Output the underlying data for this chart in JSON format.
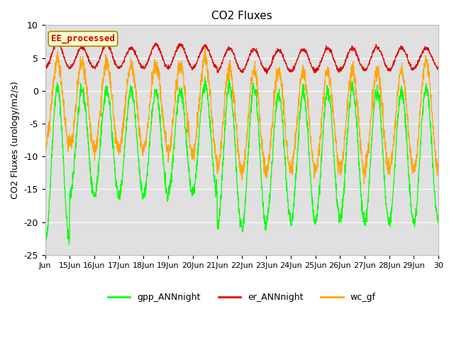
{
  "title": "CO2 Fluxes",
  "ylabel": "CO2 Fluxes (urology/m2/s)",
  "xlabel": "",
  "ylim": [
    -25,
    10
  ],
  "background_color": "#e0e0e0",
  "figure_background": "#ffffff",
  "line_colors": {
    "gpp": "#00ff00",
    "er": "#dd0000",
    "wc": "#ffa500"
  },
  "legend_labels": [
    "gpp_ANNnight",
    "er_ANNnight",
    "wc_gf"
  ],
  "annotation_text": "EE_processed",
  "annotation_color": "#cc0000",
  "annotation_bg": "#ffffcc",
  "xtick_labels": [
    "Jun",
    "15Jun",
    "16Jun",
    "17Jun",
    "18Jun",
    "19Jun",
    "20Jun",
    "21Jun",
    "22Jun",
    "23Jun",
    "24Jun",
    "25Jun",
    "26Jun",
    "27Jun",
    "28Jun",
    "29Jun",
    "30"
  ],
  "grid_color": "#ffffff",
  "n_points_per_day": 120,
  "n_days": 16
}
